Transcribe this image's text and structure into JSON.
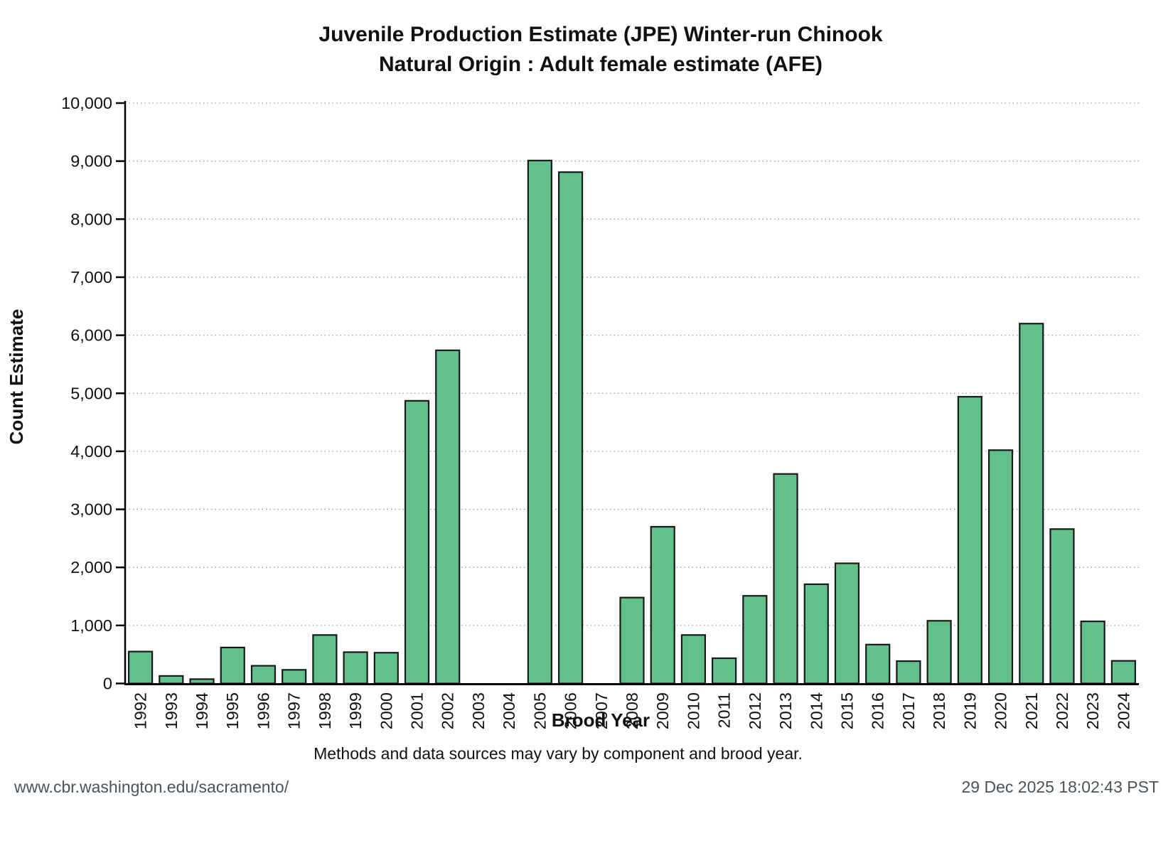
{
  "title": {
    "line1": "Juvenile Production Estimate (JPE) Winter-run Chinook",
    "line2": "Natural Origin : Adult female estimate (AFE)"
  },
  "axes": {
    "y_label": "Count Estimate",
    "x_label": "Brood Year",
    "y_tick_labels": [
      "0",
      "1,000",
      "2,000",
      "3,000",
      "4,000",
      "5,000",
      "6,000",
      "7,000",
      "8,000",
      "9,000",
      "10,000"
    ]
  },
  "footnote": "Methods and data sources may vary by component and brood year.",
  "footer": {
    "left": "www.cbr.washington.edu/sacramento/",
    "right": "29 Dec 2025 18:02:43 PST"
  },
  "colors": {
    "bar_fill": "#61c08b",
    "bar_stroke": "#1a1a1a",
    "grid": "#9a9a9a",
    "spine": "#000000",
    "footer_text": "#47545c"
  },
  "chart_data": {
    "type": "bar",
    "title": "Juvenile Production Estimate (JPE) Winter-run Chinook - Natural Origin : Adult female estimate (AFE)",
    "xlabel": "Brood Year",
    "ylabel": "Count Estimate",
    "ylim": [
      0,
      10000
    ],
    "y_tick_step": 1000,
    "grid": "horizontal-dotted",
    "legend": "none",
    "categories": [
      "1992",
      "1993",
      "1994",
      "1995",
      "1996",
      "1997",
      "1998",
      "1999",
      "2000",
      "2001",
      "2002",
      "2003",
      "2004",
      "2005",
      "2006",
      "2007",
      "2008",
      "2009",
      "2010",
      "2011",
      "2012",
      "2013",
      "2014",
      "2015",
      "2016",
      "2017",
      "2018",
      "2019",
      "2020",
      "2021",
      "2022",
      "2023",
      "2024"
    ],
    "values": [
      550,
      130,
      75,
      620,
      305,
      235,
      835,
      540,
      530,
      4870,
      5740,
      null,
      null,
      9010,
      8810,
      null,
      1480,
      2700,
      835,
      435,
      1510,
      3610,
      1710,
      2070,
      670,
      385,
      1080,
      4940,
      4020,
      6200,
      2660,
      1070,
      390
    ]
  }
}
